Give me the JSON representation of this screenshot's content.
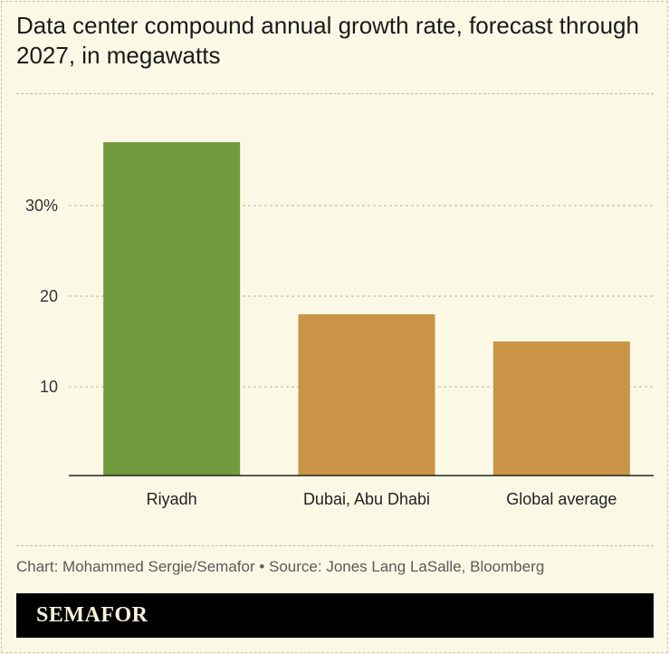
{
  "title": "Data center compound annual growth rate, forecast through 2027, in megawatts",
  "credit": "Chart: Mohammed Sergie/Semafor • Source: Jones Lang LaSalle, Bloomberg",
  "logo": "SEMAFOR",
  "chart_data": {
    "type": "bar",
    "categories": [
      "Riyadh",
      "Dubai, Abu Dhabi",
      "Global average"
    ],
    "values": [
      37,
      18,
      15
    ],
    "colors": [
      "#6f9a3e",
      "#c99445",
      "#c99445"
    ],
    "yticks": [
      10,
      20,
      30
    ],
    "ytick_labels": [
      "10",
      "20",
      "30%"
    ],
    "ylim": [
      0,
      40
    ],
    "grid": true,
    "xlabel": "",
    "ylabel": ""
  }
}
